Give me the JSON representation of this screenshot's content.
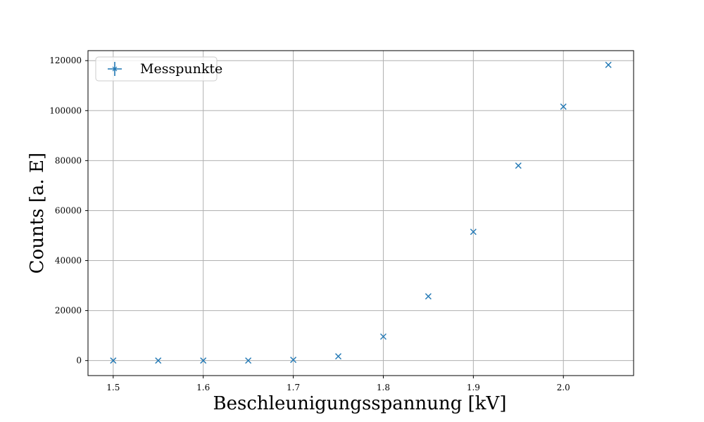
{
  "chart_data": {
    "type": "scatter",
    "xlabel": "Beschleunigungsspannung [kV]",
    "ylabel": "Counts [a. E]",
    "xlim": [
      1.472,
      2.078
    ],
    "ylim": [
      -6000,
      124000
    ],
    "grid": true,
    "legend_position": "top-left",
    "x_ticks": [
      1.5,
      1.6,
      1.7,
      1.8,
      1.9,
      2.0
    ],
    "x_tick_labels": [
      "1.5",
      "1.6",
      "1.7",
      "1.8",
      "1.9",
      "2.0"
    ],
    "y_ticks": [
      0,
      20000,
      40000,
      60000,
      80000,
      100000,
      120000
    ],
    "y_tick_labels": [
      "0",
      "20000",
      "40000",
      "60000",
      "80000",
      "100000",
      "120000"
    ],
    "series": [
      {
        "name": "Messpunkte",
        "marker": "x",
        "color": "#1f77b4",
        "x": [
          1.5,
          1.55,
          1.6,
          1.65,
          1.7,
          1.75,
          1.8,
          1.85,
          1.9,
          1.95,
          2.0,
          2.05
        ],
        "y": [
          0,
          0,
          0,
          0,
          300,
          1700,
          9600,
          25700,
          51500,
          78000,
          101600,
          118300
        ]
      }
    ]
  }
}
